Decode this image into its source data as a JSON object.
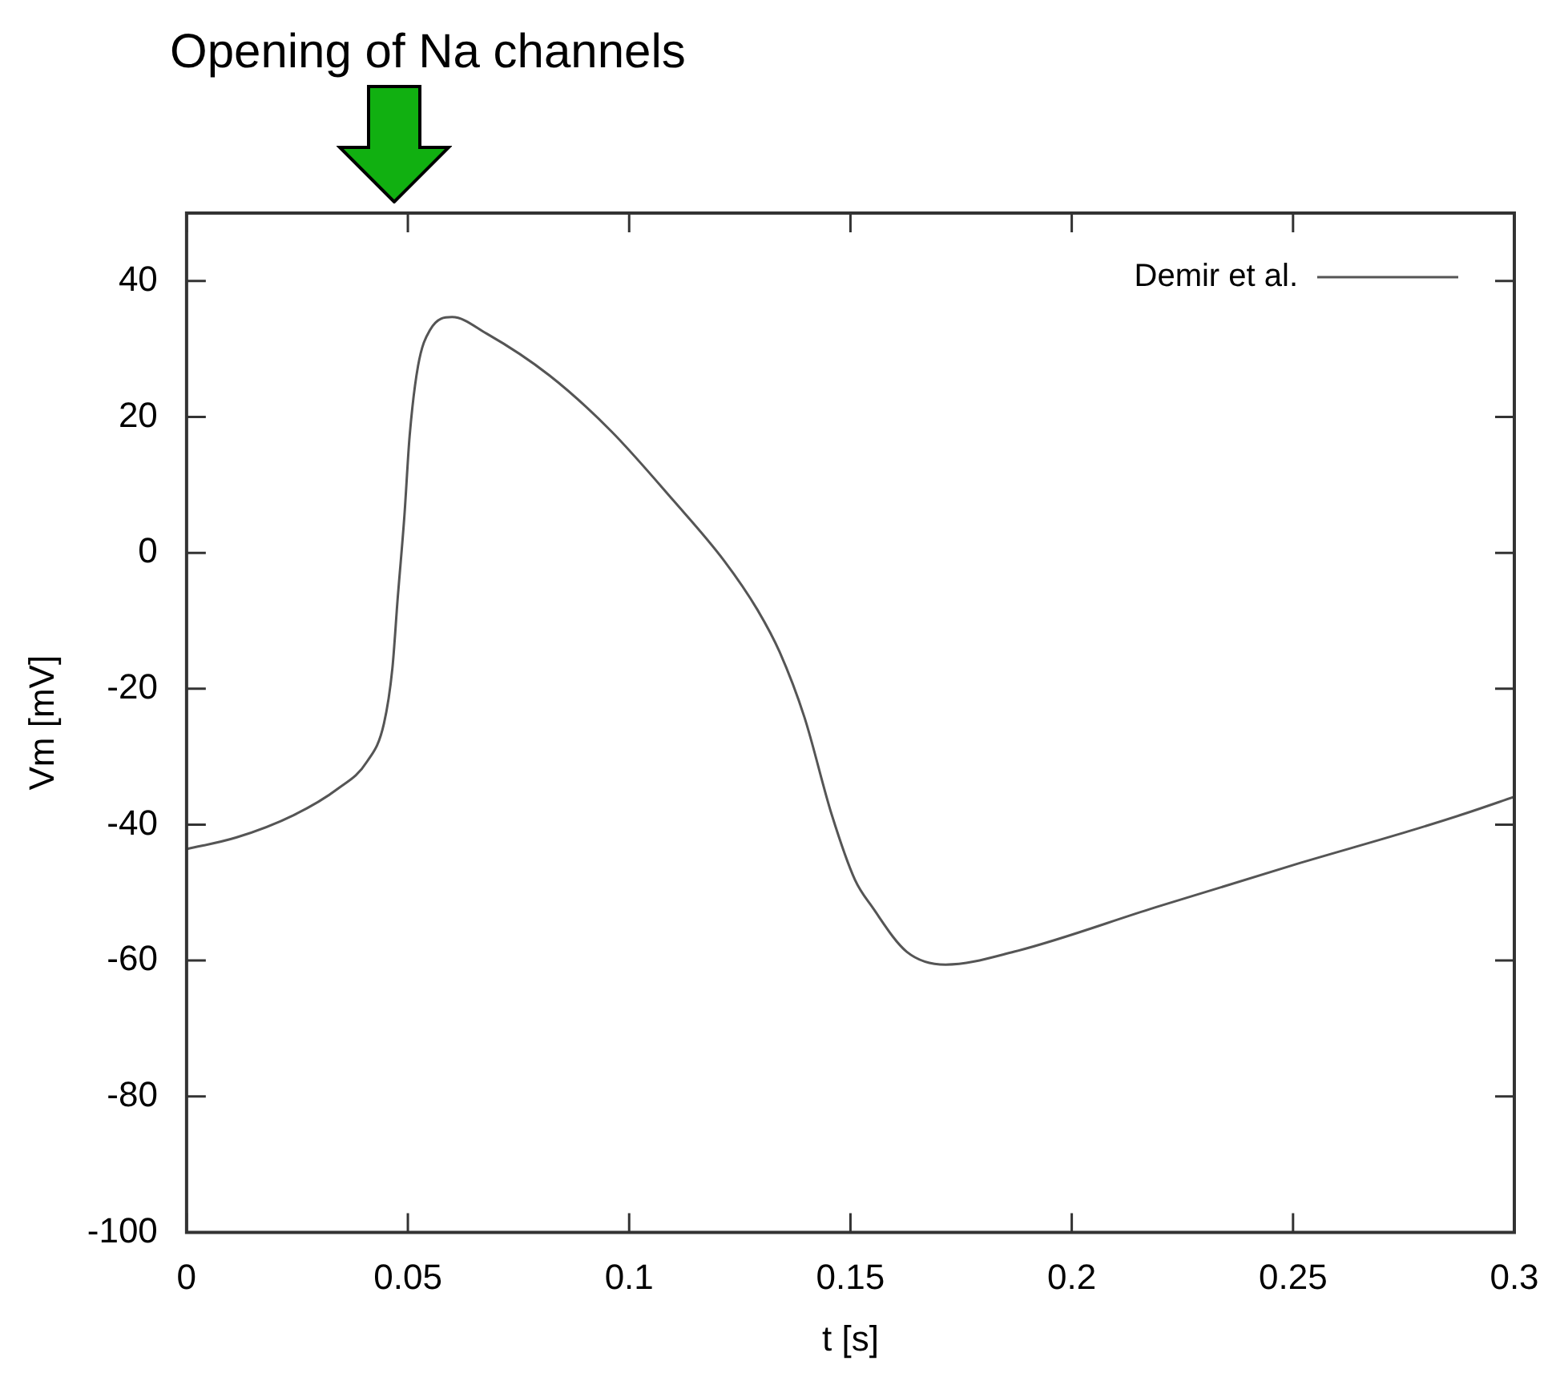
{
  "chart_data": {
    "type": "line",
    "xlabel": "t [s]",
    "ylabel": "Vm [mV]",
    "annotations": [
      "Opening of Na channels"
    ],
    "x": [
      0,
      0.0112,
      0.0242,
      0.0342,
      0.0408,
      0.0446,
      0.0465,
      0.0477,
      0.0492,
      0.0504,
      0.0523,
      0.055,
      0.06,
      0.0677,
      0.082,
      0.0958,
      0.11,
      0.1215,
      0.129,
      0.134,
      0.1396,
      0.1458,
      0.151,
      0.155,
      0.1627,
      0.1715,
      0.187,
      0.2188,
      0.2508,
      0.276,
      0.2892,
      0.3
    ],
    "series": [
      {
        "name": "Demir et al.",
        "color": "#555555",
        "values": [
          -43.6,
          -41.9,
          -38.6,
          -34.7,
          -30.7,
          -25.1,
          -17,
          -6.7,
          5.3,
          17.2,
          27.5,
          32.8,
          34.7,
          32.3,
          26.1,
          18,
          7.7,
          -1.2,
          -8.4,
          -14.6,
          -24.2,
          -38.6,
          -48.1,
          -52.2,
          -58.7,
          -60.6,
          -58.7,
          -52.2,
          -45.8,
          -41,
          -38.3,
          -35.9
        ]
      }
    ],
    "xlim": [
      0,
      0.3
    ],
    "xticks": [
      0,
      0.05,
      0.1,
      0.15,
      0.2,
      0.25,
      0.3
    ],
    "ylim": [
      -100,
      50
    ],
    "yticks": [
      -100,
      -80,
      -60,
      -40,
      -20,
      0,
      20,
      40
    ],
    "grid": false,
    "legend": "top right",
    "marker": "none",
    "line_style": "solid"
  }
}
